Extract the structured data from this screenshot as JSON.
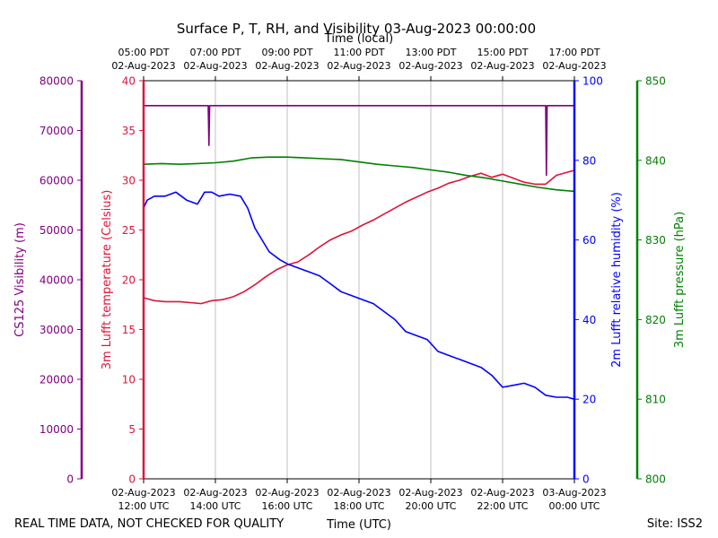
{
  "chart_data": {
    "type": "line",
    "title": "Surface P, T, RH, and Visibility 03-Aug-2023 00:00:00",
    "top_axis_label": "Time (local)",
    "xlabel": "Time (UTC)",
    "footer_left": "REAL TIME DATA, NOT CHECKED FOR QUALITY",
    "footer_right": "Site: ISS2",
    "x_hours_utc": [
      12,
      14,
      16,
      18,
      20,
      22,
      24
    ],
    "xlim_hours_utc": [
      12,
      24
    ],
    "x_ticks_utc": [
      {
        "date": "02-Aug-2023",
        "time": "12:00 UTC"
      },
      {
        "date": "02-Aug-2023",
        "time": "14:00 UTC"
      },
      {
        "date": "02-Aug-2023",
        "time": "16:00 UTC"
      },
      {
        "date": "02-Aug-2023",
        "time": "18:00 UTC"
      },
      {
        "date": "02-Aug-2023",
        "time": "20:00 UTC"
      },
      {
        "date": "02-Aug-2023",
        "time": "22:00 UTC"
      },
      {
        "date": "03-Aug-2023",
        "time": "00:00 UTC"
      }
    ],
    "x_ticks_local": [
      {
        "time": "05:00 PDT",
        "date": "02-Aug-2023"
      },
      {
        "time": "07:00 PDT",
        "date": "02-Aug-2023"
      },
      {
        "time": "09:00 PDT",
        "date": "02-Aug-2023"
      },
      {
        "time": "11:00 PDT",
        "date": "02-Aug-2023"
      },
      {
        "time": "13:00 PDT",
        "date": "02-Aug-2023"
      },
      {
        "time": "15:00 PDT",
        "date": "02-Aug-2023"
      },
      {
        "time": "17:00 PDT",
        "date": "02-Aug-2023"
      }
    ],
    "grid": "vertical",
    "axes": [
      {
        "name": "visibility",
        "label": "CS125 Visibility (m)",
        "color": "#800080",
        "ylim": [
          0,
          80000
        ],
        "ticks": [
          0,
          10000,
          20000,
          30000,
          40000,
          50000,
          60000,
          70000,
          80000
        ]
      },
      {
        "name": "temperature",
        "label": "3m Lufft temperature (Celsius)",
        "color": "#dc143c",
        "ylim": [
          0,
          40
        ],
        "ticks": [
          0,
          5,
          10,
          15,
          20,
          25,
          30,
          35,
          40
        ]
      },
      {
        "name": "humidity",
        "label": "2m Lufft relative humidity (%)",
        "color": "#0000ff",
        "ylim": [
          0,
          100
        ],
        "ticks": [
          0,
          20,
          40,
          60,
          80,
          100
        ]
      },
      {
        "name": "pressure",
        "label": "3m Lufft pressure (hPa)",
        "color": "#008000",
        "ylim": [
          800,
          850
        ],
        "ticks": [
          800,
          810,
          820,
          830,
          840,
          850
        ]
      }
    ],
    "series": [
      {
        "name": "Visibility",
        "axis": "visibility",
        "color": "#800080",
        "x": [
          12.0,
          13.8,
          13.82,
          13.84,
          23.2,
          23.22,
          23.24,
          24.0
        ],
        "y": [
          75000,
          75000,
          67000,
          75000,
          75000,
          61000,
          75000,
          75000
        ]
      },
      {
        "name": "Temperature",
        "axis": "temperature",
        "color": "#dc143c",
        "x": [
          12.0,
          12.3,
          12.6,
          13.0,
          13.3,
          13.6,
          13.9,
          14.2,
          14.5,
          14.8,
          15.1,
          15.4,
          15.7,
          16.0,
          16.3,
          16.6,
          16.9,
          17.2,
          17.5,
          17.8,
          18.1,
          18.4,
          18.7,
          19.0,
          19.3,
          19.6,
          19.9,
          20.2,
          20.5,
          20.8,
          21.1,
          21.4,
          21.7,
          22.0,
          22.3,
          22.6,
          22.9,
          23.2,
          23.5,
          23.8,
          24.0
        ],
        "y": [
          18.2,
          17.9,
          17.8,
          17.8,
          17.7,
          17.6,
          17.9,
          18.0,
          18.3,
          18.8,
          19.5,
          20.3,
          21.0,
          21.5,
          21.8,
          22.5,
          23.3,
          24.0,
          24.5,
          24.9,
          25.5,
          26.0,
          26.6,
          27.2,
          27.8,
          28.3,
          28.8,
          29.2,
          29.7,
          30.0,
          30.4,
          30.7,
          30.3,
          30.6,
          30.2,
          29.8,
          29.6,
          29.6,
          30.5,
          30.8,
          31.0
        ]
      },
      {
        "name": "Relative humidity",
        "axis": "humidity",
        "color": "#0000ff",
        "x": [
          12.0,
          12.1,
          12.3,
          12.6,
          12.9,
          13.2,
          13.5,
          13.7,
          13.9,
          14.1,
          14.4,
          14.7,
          14.9,
          15.1,
          15.3,
          15.5,
          15.8,
          16.0,
          16.3,
          16.6,
          16.9,
          17.2,
          17.5,
          17.8,
          18.1,
          18.4,
          18.7,
          19.0,
          19.3,
          19.6,
          19.9,
          20.2,
          20.5,
          20.8,
          21.1,
          21.4,
          21.7,
          21.9,
          22.0,
          22.3,
          22.6,
          22.9,
          23.2,
          23.5,
          23.8,
          24.0
        ],
        "y": [
          68,
          70,
          71,
          71,
          72,
          70,
          69,
          72,
          72,
          71,
          71.5,
          71,
          68,
          63,
          60,
          57,
          55,
          54,
          53,
          52,
          51,
          49,
          47,
          46,
          45,
          44,
          42,
          40,
          37,
          36,
          35,
          32,
          31,
          30,
          29,
          28,
          26,
          24,
          23,
          23.5,
          24,
          23,
          21,
          20.5,
          20.5,
          20
        ]
      },
      {
        "name": "Pressure",
        "axis": "pressure",
        "color": "#008000",
        "x": [
          12.0,
          12.5,
          13.0,
          13.5,
          14.0,
          14.5,
          15.0,
          15.5,
          16.0,
          16.5,
          17.0,
          17.5,
          18.0,
          18.5,
          19.0,
          19.5,
          20.0,
          20.5,
          21.0,
          21.5,
          22.0,
          22.5,
          23.0,
          23.5,
          24.0
        ],
        "y": [
          839.5,
          839.6,
          839.5,
          839.6,
          839.7,
          839.9,
          840.3,
          840.4,
          840.4,
          840.3,
          840.2,
          840.1,
          839.8,
          839.5,
          839.3,
          839.1,
          838.8,
          838.5,
          838.1,
          837.8,
          837.4,
          837.0,
          836.6,
          836.3,
          836.1
        ]
      }
    ]
  }
}
